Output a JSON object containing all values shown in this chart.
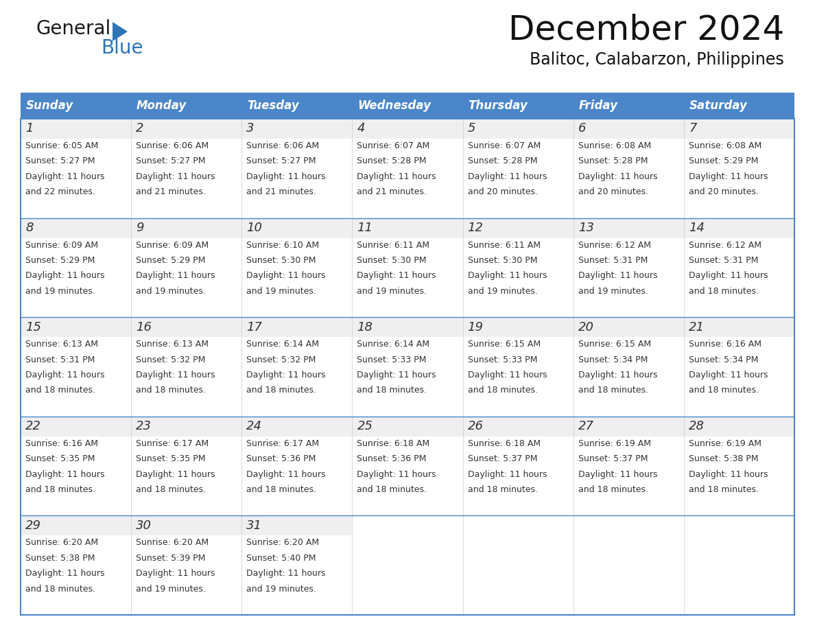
{
  "title": "December 2024",
  "subtitle": "Balitoc, Calabarzon, Philippines",
  "header_color": "#4a86c8",
  "header_text_color": "#FFFFFF",
  "days_of_week": [
    "Sunday",
    "Monday",
    "Tuesday",
    "Wednesday",
    "Thursday",
    "Friday",
    "Saturday"
  ],
  "bg_color": "#FFFFFF",
  "cell_day_bg": "#EFEFEF",
  "border_color": "#4a86c8",
  "text_color": "#333333",
  "calendar_data": [
    [
      {
        "day": 1,
        "sunrise": "6:05 AM",
        "sunset": "5:27 PM",
        "daylight": "11 hours",
        "daylight2": "and 22 minutes."
      },
      {
        "day": 2,
        "sunrise": "6:06 AM",
        "sunset": "5:27 PM",
        "daylight": "11 hours",
        "daylight2": "and 21 minutes."
      },
      {
        "day": 3,
        "sunrise": "6:06 AM",
        "sunset": "5:27 PM",
        "daylight": "11 hours",
        "daylight2": "and 21 minutes."
      },
      {
        "day": 4,
        "sunrise": "6:07 AM",
        "sunset": "5:28 PM",
        "daylight": "11 hours",
        "daylight2": "and 21 minutes."
      },
      {
        "day": 5,
        "sunrise": "6:07 AM",
        "sunset": "5:28 PM",
        "daylight": "11 hours",
        "daylight2": "and 20 minutes."
      },
      {
        "day": 6,
        "sunrise": "6:08 AM",
        "sunset": "5:28 PM",
        "daylight": "11 hours",
        "daylight2": "and 20 minutes."
      },
      {
        "day": 7,
        "sunrise": "6:08 AM",
        "sunset": "5:29 PM",
        "daylight": "11 hours",
        "daylight2": "and 20 minutes."
      }
    ],
    [
      {
        "day": 8,
        "sunrise": "6:09 AM",
        "sunset": "5:29 PM",
        "daylight": "11 hours",
        "daylight2": "and 19 minutes."
      },
      {
        "day": 9,
        "sunrise": "6:09 AM",
        "sunset": "5:29 PM",
        "daylight": "11 hours",
        "daylight2": "and 19 minutes."
      },
      {
        "day": 10,
        "sunrise": "6:10 AM",
        "sunset": "5:30 PM",
        "daylight": "11 hours",
        "daylight2": "and 19 minutes."
      },
      {
        "day": 11,
        "sunrise": "6:11 AM",
        "sunset": "5:30 PM",
        "daylight": "11 hours",
        "daylight2": "and 19 minutes."
      },
      {
        "day": 12,
        "sunrise": "6:11 AM",
        "sunset": "5:30 PM",
        "daylight": "11 hours",
        "daylight2": "and 19 minutes."
      },
      {
        "day": 13,
        "sunrise": "6:12 AM",
        "sunset": "5:31 PM",
        "daylight": "11 hours",
        "daylight2": "and 19 minutes."
      },
      {
        "day": 14,
        "sunrise": "6:12 AM",
        "sunset": "5:31 PM",
        "daylight": "11 hours",
        "daylight2": "and 18 minutes."
      }
    ],
    [
      {
        "day": 15,
        "sunrise": "6:13 AM",
        "sunset": "5:31 PM",
        "daylight": "11 hours",
        "daylight2": "and 18 minutes."
      },
      {
        "day": 16,
        "sunrise": "6:13 AM",
        "sunset": "5:32 PM",
        "daylight": "11 hours",
        "daylight2": "and 18 minutes."
      },
      {
        "day": 17,
        "sunrise": "6:14 AM",
        "sunset": "5:32 PM",
        "daylight": "11 hours",
        "daylight2": "and 18 minutes."
      },
      {
        "day": 18,
        "sunrise": "6:14 AM",
        "sunset": "5:33 PM",
        "daylight": "11 hours",
        "daylight2": "and 18 minutes."
      },
      {
        "day": 19,
        "sunrise": "6:15 AM",
        "sunset": "5:33 PM",
        "daylight": "11 hours",
        "daylight2": "and 18 minutes."
      },
      {
        "day": 20,
        "sunrise": "6:15 AM",
        "sunset": "5:34 PM",
        "daylight": "11 hours",
        "daylight2": "and 18 minutes."
      },
      {
        "day": 21,
        "sunrise": "6:16 AM",
        "sunset": "5:34 PM",
        "daylight": "11 hours",
        "daylight2": "and 18 minutes."
      }
    ],
    [
      {
        "day": 22,
        "sunrise": "6:16 AM",
        "sunset": "5:35 PM",
        "daylight": "11 hours",
        "daylight2": "and 18 minutes."
      },
      {
        "day": 23,
        "sunrise": "6:17 AM",
        "sunset": "5:35 PM",
        "daylight": "11 hours",
        "daylight2": "and 18 minutes."
      },
      {
        "day": 24,
        "sunrise": "6:17 AM",
        "sunset": "5:36 PM",
        "daylight": "11 hours",
        "daylight2": "and 18 minutes."
      },
      {
        "day": 25,
        "sunrise": "6:18 AM",
        "sunset": "5:36 PM",
        "daylight": "11 hours",
        "daylight2": "and 18 minutes."
      },
      {
        "day": 26,
        "sunrise": "6:18 AM",
        "sunset": "5:37 PM",
        "daylight": "11 hours",
        "daylight2": "and 18 minutes."
      },
      {
        "day": 27,
        "sunrise": "6:19 AM",
        "sunset": "5:37 PM",
        "daylight": "11 hours",
        "daylight2": "and 18 minutes."
      },
      {
        "day": 28,
        "sunrise": "6:19 AM",
        "sunset": "5:38 PM",
        "daylight": "11 hours",
        "daylight2": "and 18 minutes."
      }
    ],
    [
      {
        "day": 29,
        "sunrise": "6:20 AM",
        "sunset": "5:38 PM",
        "daylight": "11 hours",
        "daylight2": "and 18 minutes."
      },
      {
        "day": 30,
        "sunrise": "6:20 AM",
        "sunset": "5:39 PM",
        "daylight": "11 hours",
        "daylight2": "and 19 minutes."
      },
      {
        "day": 31,
        "sunrise": "6:20 AM",
        "sunset": "5:40 PM",
        "daylight": "11 hours",
        "daylight2": "and 19 minutes."
      },
      null,
      null,
      null,
      null
    ]
  ],
  "logo_general_color": "#1a1a1a",
  "logo_blue_color": "#2E75B6",
  "logo_triangle_color": "#2E75B6",
  "title_fontsize": 36,
  "subtitle_fontsize": 17,
  "header_fontsize": 12,
  "day_num_fontsize": 13,
  "cell_fontsize": 9
}
